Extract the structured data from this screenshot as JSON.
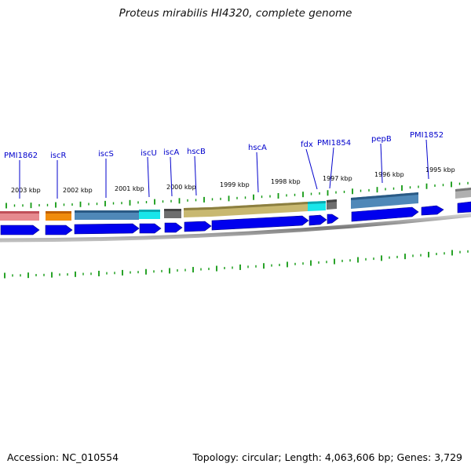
{
  "title": "Proteus mirabilis HI4320, complete genome",
  "accession_label": "Accession: NC_010554",
  "summary_label": "Topology: circular; Length: 4,063,606 bp; Genes: 3,729",
  "colors": {
    "cds_arrow": "#0000ee",
    "gene_label": "#0000cc",
    "tick": "#119911",
    "backbone": "#8a8a8a"
  },
  "scale_labels": [
    "2003 kbp",
    "2002 kbp",
    "2001 kbp",
    "2000 kbp",
    "1999 kbp",
    "1998 kbp",
    "1997 kbp",
    "1996 kbp",
    "1995 kbp"
  ],
  "gene_labels": [
    "PMI1862",
    "iscR",
    "iscS",
    "iscU",
    "iscA",
    "hscB",
    "hscA",
    "fdx",
    "PMI1854",
    "pepB",
    "PMI1852"
  ],
  "features": [
    {
      "gene": "PMI1862",
      "color": "#e68a8f"
    },
    {
      "gene": "iscR",
      "color": "#f08c0c"
    },
    {
      "gene": "iscS",
      "color": "#4f88b8"
    },
    {
      "gene": "iscU",
      "color": "#18e6ea"
    },
    {
      "gene": "iscA",
      "color": "#6e6e6e"
    },
    {
      "gene": "hscB",
      "color": "#c8b870"
    },
    {
      "gene": "hscA",
      "color": "#c8b870"
    },
    {
      "gene": "fdx",
      "color": "#18e6ea"
    },
    {
      "gene": "PMI1854",
      "color": "#6e6e6e"
    },
    {
      "gene": "pepB",
      "color": "#4f88b8"
    },
    {
      "gene": "PMI1852",
      "color": "#b0b0b0"
    }
  ]
}
